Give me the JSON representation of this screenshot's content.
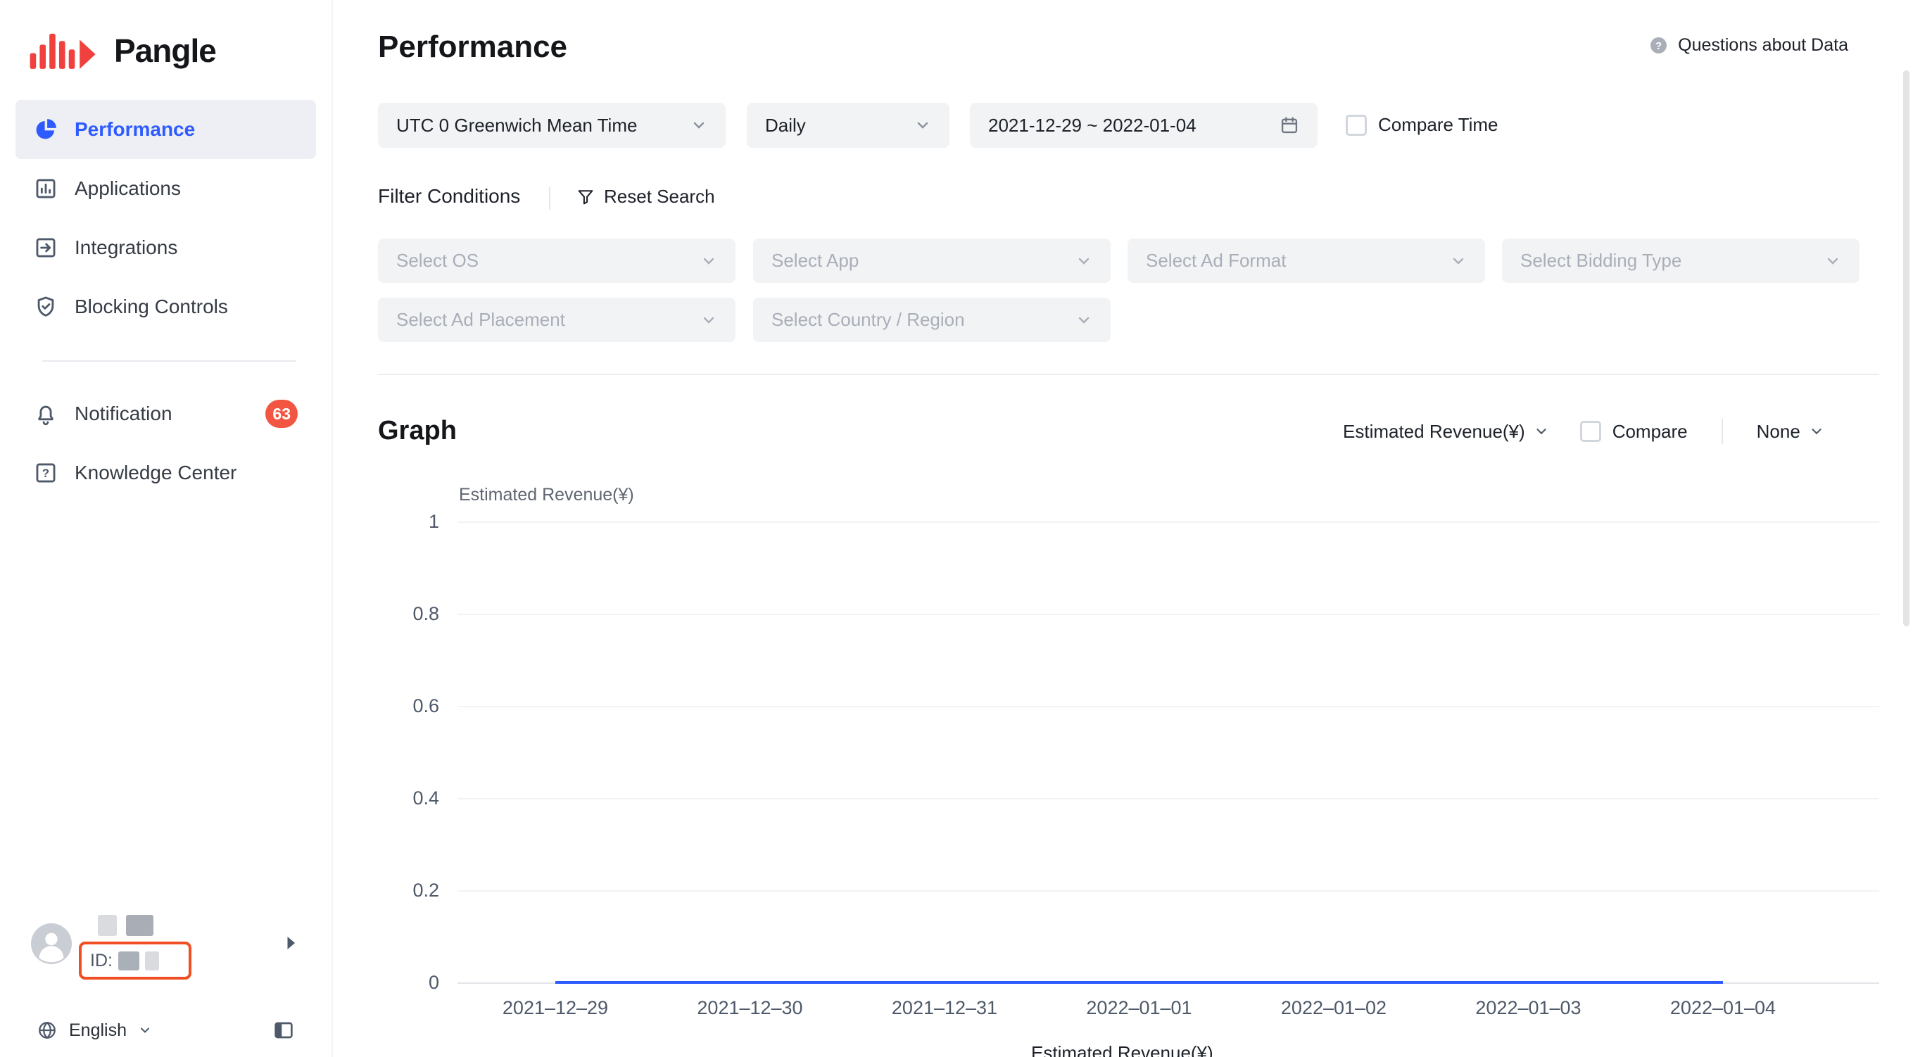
{
  "brand": {
    "name": "Pangle"
  },
  "colors": {
    "accent_blue": "#2e5bff",
    "logo_red": "#f0413e",
    "badge_red": "#f25643",
    "id_highlight_red": "#f04f23"
  },
  "sidebar": {
    "items": [
      {
        "label": "Performance",
        "icon": "pie-chart-icon",
        "active": true
      },
      {
        "label": "Applications",
        "icon": "applications-icon",
        "active": false
      },
      {
        "label": "Integrations",
        "icon": "integrations-icon",
        "active": false
      },
      {
        "label": "Blocking Controls",
        "icon": "shield-check-icon",
        "active": false
      }
    ],
    "secondary": [
      {
        "label": "Notification",
        "icon": "bell-icon",
        "badge": "63"
      },
      {
        "label": "Knowledge Center",
        "icon": "question-square-icon",
        "badge": ""
      }
    ],
    "user": {
      "id_prefix": "ID:"
    },
    "language": {
      "label": "English",
      "icon": "globe-icon"
    }
  },
  "header": {
    "title": "Performance",
    "help_label": "Questions about Data"
  },
  "filters": {
    "timezone": "UTC 0 Greenwich Mean Time",
    "granularity": "Daily",
    "date_range": "2021-12-29 ~ 2022-01-04",
    "compare_time_label": "Compare Time",
    "conditions_label": "Filter Conditions",
    "reset_label": "Reset Search",
    "selects": [
      "Select OS",
      "Select App",
      "Select Ad Format",
      "Select Bidding Type",
      "Select Ad Placement",
      "Select Country / Region"
    ]
  },
  "graph": {
    "section_title": "Graph",
    "metric_selector": "Estimated Revenue(¥)",
    "compare_label": "Compare",
    "dimension_selector": "None"
  },
  "chart_data": {
    "type": "line",
    "title": "",
    "xlabel": "",
    "ylabel": "Estimated Revenue(¥)",
    "x": [
      "2021–12–29",
      "2021–12–30",
      "2021–12–31",
      "2022–01–01",
      "2022–01–02",
      "2022–01–03",
      "2022–01–04"
    ],
    "series": [
      {
        "name": "Estimated Revenue(¥)",
        "values": [
          0,
          0,
          0,
          0,
          0,
          0,
          0
        ]
      }
    ],
    "ylim": [
      0,
      1
    ],
    "yticks": [
      0,
      0.2,
      0.4,
      0.6,
      0.8,
      1
    ],
    "grid": true,
    "legend_position": "bottom",
    "line_color": "#2e5bff"
  }
}
